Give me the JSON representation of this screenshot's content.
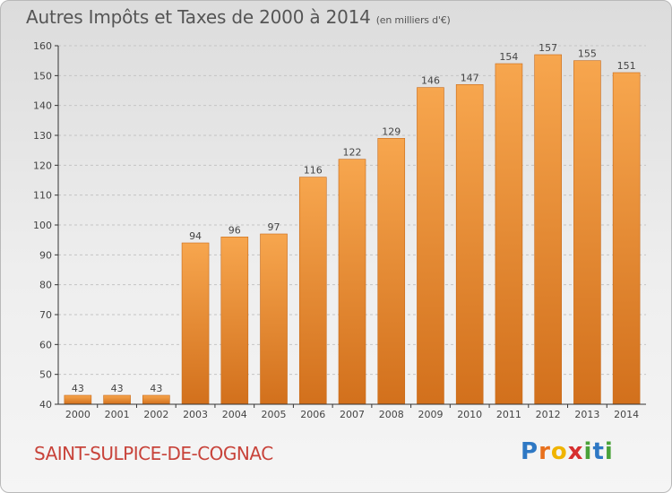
{
  "header": {
    "title": "Autres Impôts et Taxes de 2000 à 2014",
    "unit": "(en milliers d'€)"
  },
  "footer": {
    "commune": "SAINT-SULPICE-DE-COGNAC",
    "logo_letters": [
      "P",
      "r",
      "o",
      "x",
      "i",
      "t",
      "i"
    ],
    "logo_colors": [
      "#2e78c4",
      "#e8701c",
      "#f0b400",
      "#d62f2f",
      "#4aa23a",
      "#2e78c4",
      "#4aa23a"
    ]
  },
  "colors": {
    "bar_light": "#f7a64e",
    "bar_dark": "#d2701c",
    "bar_edge": "#c86a18",
    "grid": "#c4c4c4",
    "axis": "#333333",
    "label": "#444444"
  },
  "chart_data": {
    "type": "bar",
    "title": "Autres Impôts et Taxes de 2000 à 2014",
    "subtitle": "(en milliers d'€)",
    "categories": [
      "2000",
      "2001",
      "2002",
      "2003",
      "2004",
      "2005",
      "2006",
      "2007",
      "2008",
      "2009",
      "2010",
      "2011",
      "2012",
      "2013",
      "2014"
    ],
    "values": [
      43,
      43,
      43,
      94,
      96,
      97,
      116,
      122,
      129,
      146,
      147,
      154,
      157,
      155,
      151
    ],
    "data_labels": [
      "43",
      "43",
      "43",
      "94",
      "96",
      "97",
      "116",
      "122",
      "129",
      "146",
      "147",
      "154",
      "157",
      "155",
      "151"
    ],
    "ylim": [
      40,
      160
    ],
    "yticks": [
      40,
      50,
      60,
      70,
      80,
      90,
      100,
      110,
      120,
      130,
      140,
      150,
      160
    ],
    "ytick_labels": [
      "40",
      "50",
      "60",
      "70",
      "80",
      "90",
      "100",
      "110",
      "120",
      "130",
      "140",
      "150",
      "160"
    ],
    "grid": true,
    "xlabel": "",
    "ylabel": ""
  }
}
